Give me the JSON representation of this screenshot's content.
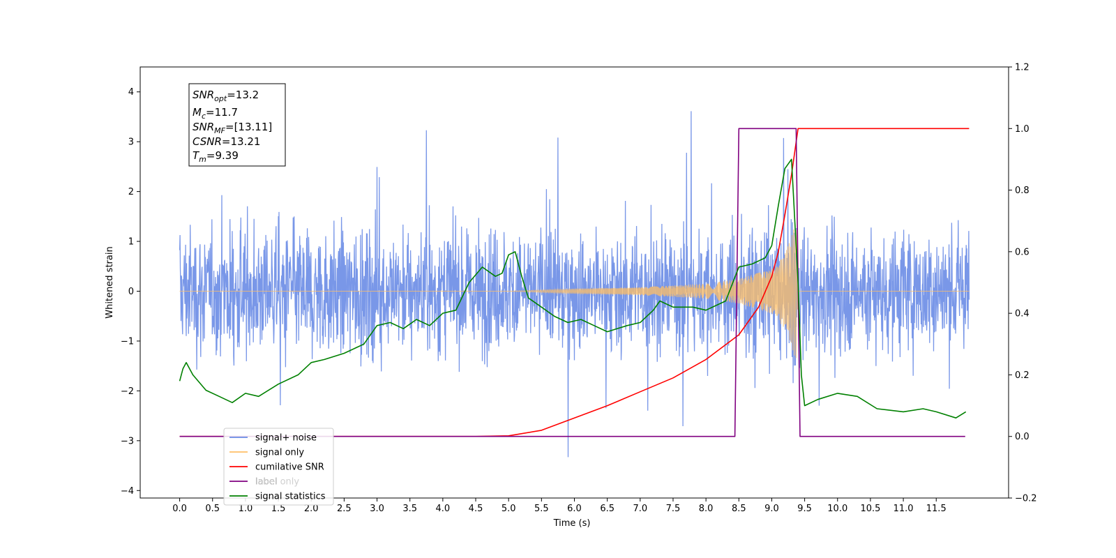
{
  "chart_data": {
    "type": "line",
    "xlabel": "Time (s)",
    "ylabel": "Whitened strain",
    "xlim": [
      -0.6,
      12.6
    ],
    "ylim": [
      -4.15,
      4.5
    ],
    "y2lim": [
      -0.2,
      1.2
    ],
    "x_ticks": [
      "0.0",
      "0.5",
      "1.0",
      "1.5",
      "2.0",
      "2.5",
      "3.0",
      "3.5",
      "4.0",
      "4.5",
      "5.0",
      "5.5",
      "6.0",
      "6.5",
      "7.0",
      "7.5",
      "8.0",
      "8.5",
      "9.0",
      "9.5",
      "10.0",
      "10.5",
      "11.0",
      "11.5"
    ],
    "y_ticks": [
      "4",
      "3",
      "2",
      "1",
      "0",
      "−1",
      "−2",
      "−3",
      "−4"
    ],
    "y2_ticks": [
      "1.2",
      "1.0",
      "0.8",
      "0.6",
      "0.4",
      "0.2",
      "0.0",
      "−0.2"
    ],
    "grid": false,
    "legend_position": "lower-left",
    "annotation": [
      {
        "sym": "SNR",
        "sub": "opt",
        "val": "=13.2"
      },
      {
        "sym": "M",
        "sub": "c",
        "val": "=11.7"
      },
      {
        "sym": "SNR",
        "sub": "MF",
        "val": "=[13.11]"
      },
      {
        "sym": "CSNR",
        "sub": "",
        "val": "=13.21"
      },
      {
        "sym": "T",
        "sub": "m",
        "val": "=9.39"
      }
    ],
    "series": [
      {
        "name": "signal+ noise",
        "color": "#6a8ce6",
        "axis": "left",
        "description": "noise band approx ±1.3 with spikes up to ±3.7, t=0 to 12"
      },
      {
        "name": "signal only",
        "color": "#ffbf66",
        "axis": "left",
        "envelope": {
          "x": [
            0.0,
            5.0,
            6.0,
            7.0,
            8.0,
            8.5,
            9.0,
            9.2,
            9.3,
            9.38,
            9.4,
            12.0
          ],
          "amp": [
            0.0,
            0.0,
            0.05,
            0.08,
            0.15,
            0.25,
            0.45,
            0.75,
            1.1,
            1.45,
            0.0,
            0.0
          ]
        }
      },
      {
        "name": "cumilative SNR",
        "color": "#ff0000",
        "axis": "right",
        "x": [
          0.0,
          4.5,
          5.0,
          5.5,
          6.0,
          6.5,
          7.0,
          7.5,
          8.0,
          8.5,
          8.8,
          9.0,
          9.1,
          9.2,
          9.3,
          9.36,
          9.4,
          12.0
        ],
        "y": [
          0.0,
          0.0,
          0.002,
          0.02,
          0.06,
          0.1,
          0.145,
          0.19,
          0.25,
          0.33,
          0.42,
          0.52,
          0.6,
          0.72,
          0.85,
          0.94,
          1.0,
          1.0
        ]
      },
      {
        "name": "label",
        "color": "#800080",
        "axis": "right",
        "x": [
          0.0,
          8.44,
          8.5,
          9.37,
          9.43,
          11.94
        ],
        "y": [
          0.0,
          0.0,
          1.0,
          1.0,
          0.0,
          0.0
        ]
      },
      {
        "name": "label only",
        "color": "#ffffff",
        "axis": "right",
        "hidden": true
      },
      {
        "name": "signal statistics",
        "color": "#008000",
        "axis": "right",
        "x": [
          0.0,
          0.05,
          0.1,
          0.2,
          0.4,
          0.6,
          0.8,
          1.0,
          1.2,
          1.5,
          1.8,
          2.0,
          2.2,
          2.5,
          2.8,
          3.0,
          3.2,
          3.4,
          3.6,
          3.8,
          4.0,
          4.2,
          4.4,
          4.6,
          4.8,
          4.9,
          5.0,
          5.1,
          5.2,
          5.3,
          5.5,
          5.7,
          5.9,
          6.1,
          6.3,
          6.5,
          6.8,
          7.0,
          7.2,
          7.3,
          7.5,
          7.8,
          8.0,
          8.3,
          8.5,
          8.7,
          8.9,
          9.0,
          9.1,
          9.2,
          9.3,
          9.4,
          9.45,
          9.5,
          9.7,
          10.0,
          10.3,
          10.6,
          11.0,
          11.3,
          11.5,
          11.8,
          11.95
        ],
        "y": [
          0.18,
          0.22,
          0.24,
          0.2,
          0.15,
          0.13,
          0.11,
          0.14,
          0.13,
          0.17,
          0.2,
          0.24,
          0.25,
          0.27,
          0.3,
          0.36,
          0.37,
          0.35,
          0.38,
          0.36,
          0.4,
          0.41,
          0.5,
          0.55,
          0.52,
          0.53,
          0.59,
          0.6,
          0.52,
          0.45,
          0.42,
          0.39,
          0.37,
          0.38,
          0.36,
          0.34,
          0.36,
          0.37,
          0.41,
          0.44,
          0.42,
          0.42,
          0.41,
          0.44,
          0.55,
          0.56,
          0.58,
          0.62,
          0.75,
          0.87,
          0.9,
          0.5,
          0.2,
          0.1,
          0.12,
          0.14,
          0.13,
          0.09,
          0.08,
          0.09,
          0.08,
          0.06,
          0.08
        ]
      }
    ]
  }
}
